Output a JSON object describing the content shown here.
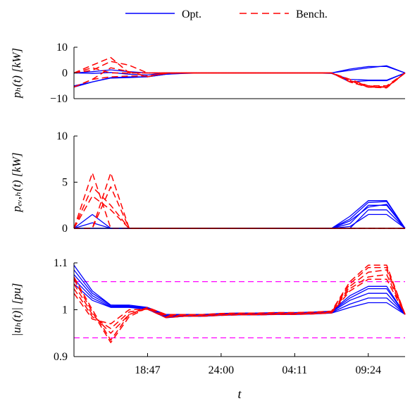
{
  "legend": {
    "opt_label": "Opt.",
    "bench_label": "Bench.",
    "opt_color": "#0000ff",
    "bench_color": "#ff0000"
  },
  "xlabel": "t",
  "chart_data": [
    {
      "type": "line",
      "ylabel": "p_h(t) [kW]",
      "ylabel_display": "pₕ(t) [kW]",
      "ylim": [
        -10,
        10
      ],
      "yticks": [
        10,
        0,
        -10
      ],
      "ytick_labels": [
        "10",
        "0",
        "−10"
      ],
      "xticks": [],
      "xtick_labels": [],
      "x": [
        0,
        1,
        2,
        3,
        4,
        5,
        6,
        7,
        8,
        9,
        10,
        11,
        12,
        13,
        14,
        15,
        16,
        17,
        18
      ],
      "series": [
        {
          "group": "Opt.",
          "values": [
            0,
            0.5,
            1.2,
            0.5,
            0,
            0,
            0,
            0,
            0,
            0,
            0,
            0,
            0,
            0,
            0,
            1.5,
            2.5,
            2.5,
            0
          ]
        },
        {
          "group": "Opt.",
          "values": [
            0,
            -0.2,
            0.2,
            -0.5,
            -0.8,
            0,
            0,
            0,
            0,
            0,
            0,
            0,
            0,
            0,
            0,
            1.0,
            2.0,
            2.8,
            0
          ]
        },
        {
          "group": "Opt.",
          "values": [
            -5,
            -3.5,
            -1.8,
            -1.5,
            -1.5,
            -0.5,
            0,
            0,
            0,
            0,
            0,
            0,
            0,
            0,
            0,
            -3.5,
            -3,
            -3,
            0
          ]
        },
        {
          "group": "Opt.",
          "values": [
            -5.5,
            -3.5,
            -2,
            -1.8,
            -1.5,
            -0.5,
            -0.2,
            0,
            0,
            0,
            0,
            0,
            0,
            0,
            -0.2,
            -2.5,
            -2.8,
            -2.8,
            0
          ]
        },
        {
          "group": "Bench.",
          "values": [
            0,
            2,
            0,
            0,
            0,
            0,
            0,
            0,
            0,
            0,
            0,
            0,
            0,
            0,
            0,
            -3.5,
            -5.5,
            -5.5,
            0
          ]
        },
        {
          "group": "Bench.",
          "values": [
            0,
            3,
            6,
            0,
            0,
            0,
            0,
            0,
            0,
            0,
            0,
            0,
            0,
            0,
            0,
            -3,
            -5,
            -5.5,
            0
          ]
        },
        {
          "group": "Bench.",
          "values": [
            0,
            1,
            4.5,
            3,
            0,
            0,
            0,
            0,
            0,
            0,
            0,
            0,
            0,
            0,
            0,
            -2.5,
            -5,
            -5,
            0
          ]
        },
        {
          "group": "Bench.",
          "values": [
            -5.5,
            -2.5,
            -1.5,
            -1.2,
            -1.2,
            -0.2,
            0,
            0,
            0,
            0,
            0,
            0,
            0,
            0,
            0,
            -3.5,
            -5.5,
            -5.8,
            0
          ]
        },
        {
          "group": "Bench.",
          "values": [
            -5.5,
            -2.5,
            2,
            0.5,
            -1.5,
            0,
            0,
            0,
            0,
            0,
            0,
            0,
            0,
            0,
            0,
            -3,
            -5.5,
            -5.5,
            0
          ]
        }
      ]
    },
    {
      "type": "line",
      "ylabel": "p_ev,h(t) [kW]",
      "ylabel_display": "pₑᵥ,ₕ(t) [kW]",
      "ylim": [
        0,
        10
      ],
      "yticks": [
        10,
        5,
        0
      ],
      "ytick_labels": [
        "10",
        "5",
        "0"
      ],
      "xticks": [],
      "xtick_labels": [],
      "x": [
        0,
        1,
        2,
        3,
        4,
        5,
        6,
        7,
        8,
        9,
        10,
        11,
        12,
        13,
        14,
        15,
        16,
        17,
        18
      ],
      "series": [
        {
          "group": "Opt.",
          "values": [
            0,
            1.5,
            0,
            0,
            0,
            0,
            0,
            0,
            0,
            0,
            0,
            0,
            0,
            0,
            0,
            0,
            2.0,
            2.0,
            0
          ]
        },
        {
          "group": "Opt.",
          "values": [
            0,
            0.6,
            0,
            0,
            0,
            0,
            0,
            0,
            0,
            0,
            0,
            0,
            0,
            0,
            0,
            0.5,
            2.5,
            2.5,
            0
          ]
        },
        {
          "group": "Opt.",
          "values": [
            0,
            0,
            0,
            0,
            0,
            0,
            0,
            0,
            0,
            0,
            0,
            0,
            0,
            0,
            0,
            1.0,
            2.8,
            2.9,
            0
          ]
        },
        {
          "group": "Opt.",
          "values": [
            0,
            0,
            0,
            0,
            0,
            0,
            0,
            0,
            0,
            0,
            0,
            0,
            0,
            0,
            0,
            1.3,
            3.0,
            3.0,
            0
          ]
        },
        {
          "group": "Opt.",
          "values": [
            0,
            0,
            0,
            0,
            0,
            0,
            0,
            0,
            0,
            0,
            0,
            0,
            0,
            0,
            0,
            0.8,
            2.3,
            2.6,
            0
          ]
        },
        {
          "group": "Opt.",
          "values": [
            0,
            0,
            0,
            0,
            0,
            0,
            0,
            0,
            0,
            0,
            0,
            0,
            0,
            0,
            0,
            0.2,
            1.5,
            1.5,
            0
          ]
        },
        {
          "group": "Bench.",
          "values": [
            0,
            6,
            0,
            0,
            0,
            0,
            0,
            0,
            0,
            0,
            0,
            0,
            0,
            0,
            0,
            0,
            0,
            0,
            0
          ]
        },
        {
          "group": "Bench.",
          "values": [
            0,
            0,
            6,
            0,
            0,
            0,
            0,
            0,
            0,
            0,
            0,
            0,
            0,
            0,
            0,
            0,
            0,
            0,
            0
          ]
        },
        {
          "group": "Bench.",
          "values": [
            0,
            4.5,
            2.5,
            0,
            0,
            0,
            0,
            0,
            0,
            0,
            0,
            0,
            0,
            0,
            0,
            0,
            0,
            0,
            0
          ]
        },
        {
          "group": "Bench.",
          "values": [
            0,
            0,
            4.5,
            0,
            0,
            0,
            0,
            0,
            0,
            0,
            0,
            0,
            0,
            0,
            0,
            0,
            0,
            0,
            0
          ]
        },
        {
          "group": "Bench.",
          "values": [
            0,
            3.5,
            2,
            0,
            0,
            0,
            0,
            0,
            0,
            0,
            0,
            0,
            0,
            0,
            0,
            0,
            0,
            0,
            0
          ]
        }
      ]
    },
    {
      "type": "line",
      "ylabel": "|u_h(t)| [pu]",
      "ylabel_display": "|uₕ(t)| [pu]",
      "ylim": [
        0.9,
        1.1
      ],
      "yticks": [
        1.1,
        1.0,
        0.9
      ],
      "ytick_labels": [
        "1.1",
        "1",
        "0.9"
      ],
      "xticks": [
        4,
        8,
        12,
        16
      ],
      "xtick_labels": [
        "18:47",
        "24:00",
        "04:11",
        "09:24"
      ],
      "hlines": [
        1.06,
        0.94
      ],
      "hline_color": "#ff00ff",
      "x": [
        0,
        1,
        2,
        3,
        4,
        5,
        6,
        7,
        8,
        9,
        10,
        11,
        12,
        13,
        14,
        15,
        16,
        17,
        18
      ],
      "series": [
        {
          "group": "Opt.",
          "values": [
            1.095,
            1.04,
            1.01,
            1.01,
            1.005,
            0.99,
            0.99,
            0.99,
            0.992,
            0.993,
            0.993,
            0.994,
            0.994,
            0.995,
            0.997,
            1.03,
            1.05,
            1.05,
            0.99
          ]
        },
        {
          "group": "Opt.",
          "values": [
            1.085,
            1.035,
            1.01,
            1.008,
            1.004,
            0.988,
            0.989,
            0.989,
            0.991,
            0.992,
            0.992,
            0.993,
            0.993,
            0.994,
            0.996,
            1.025,
            1.045,
            1.045,
            0.99
          ]
        },
        {
          "group": "Opt.",
          "values": [
            1.075,
            1.03,
            1.008,
            1.007,
            1.003,
            0.986,
            0.988,
            0.988,
            0.99,
            0.991,
            0.991,
            0.992,
            0.992,
            0.993,
            0.995,
            1.02,
            1.035,
            1.035,
            0.99
          ]
        },
        {
          "group": "Opt.",
          "values": [
            1.065,
            1.025,
            1.006,
            1.006,
            1.002,
            0.984,
            0.987,
            0.987,
            0.989,
            0.99,
            0.99,
            0.991,
            0.991,
            0.992,
            0.994,
            1.012,
            1.025,
            1.025,
            0.99
          ]
        },
        {
          "group": "Opt.",
          "values": [
            1.055,
            1.02,
            1.005,
            1.005,
            1.001,
            0.983,
            0.986,
            0.986,
            0.988,
            0.989,
            0.989,
            0.99,
            0.99,
            0.991,
            0.993,
            1.005,
            1.015,
            1.015,
            0.99
          ]
        },
        {
          "group": "Bench.",
          "values": [
            1.07,
            1.0,
            0.935,
            0.99,
            1.005,
            0.99,
            0.99,
            0.99,
            0.992,
            0.993,
            0.993,
            0.994,
            0.994,
            0.995,
            0.997,
            1.06,
            1.095,
            1.095,
            0.99
          ]
        },
        {
          "group": "Bench.",
          "values": [
            1.065,
            0.995,
            0.93,
            0.985,
            1.004,
            0.988,
            0.989,
            0.989,
            0.991,
            0.992,
            0.992,
            0.993,
            0.993,
            0.994,
            0.996,
            1.055,
            1.09,
            1.09,
            0.99
          ]
        },
        {
          "group": "Bench.",
          "values": [
            1.055,
            0.99,
            0.95,
            0.99,
            1.003,
            0.986,
            0.988,
            0.988,
            0.99,
            0.991,
            0.991,
            0.992,
            0.992,
            0.993,
            0.995,
            1.05,
            1.08,
            1.085,
            0.99
          ]
        },
        {
          "group": "Bench.",
          "values": [
            1.045,
            0.985,
            0.96,
            0.995,
            1.002,
            0.984,
            0.987,
            0.987,
            0.989,
            0.99,
            0.99,
            0.991,
            0.991,
            0.992,
            0.994,
            1.045,
            1.07,
            1.075,
            0.99
          ]
        },
        {
          "group": "Bench.",
          "values": [
            1.035,
            0.98,
            0.97,
            1.0,
            1.001,
            0.983,
            0.986,
            0.986,
            0.988,
            0.989,
            0.989,
            0.99,
            0.99,
            0.991,
            0.993,
            1.04,
            1.065,
            1.065,
            0.99
          ]
        }
      ]
    }
  ]
}
